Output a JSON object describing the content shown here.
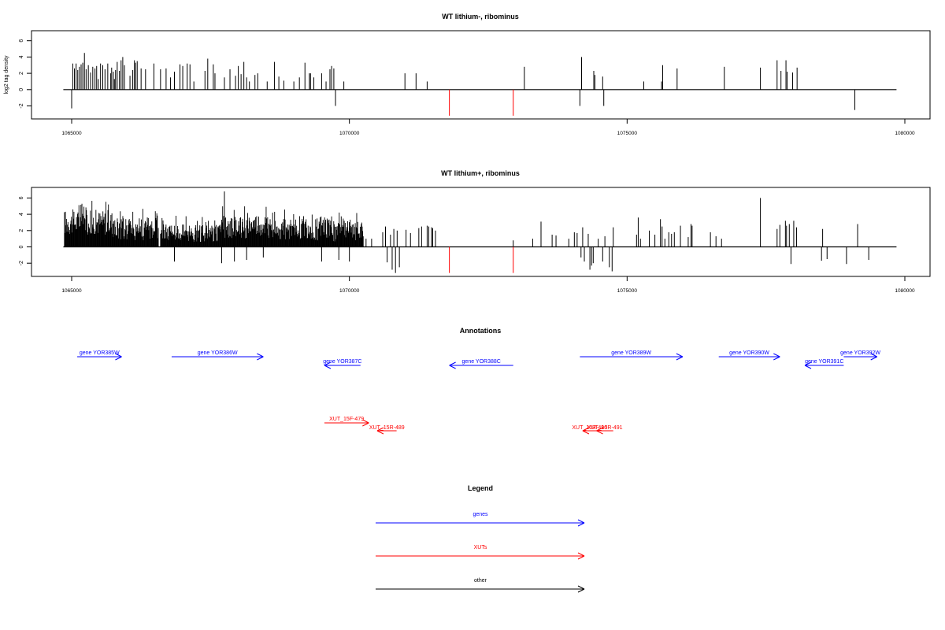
{
  "chart_data": [
    {
      "type": "bar",
      "title": "WT lithium-, ribominus",
      "xlabel": "",
      "ylabel": "log2 tag density",
      "xlim": [
        1064850,
        1079850
      ],
      "ylim": [
        -3.6,
        7.2
      ],
      "x_ticks": [
        "1065000",
        "1070000",
        "1075000",
        "1080000"
      ],
      "x_tick_values": [
        1065000,
        1070000,
        1075000,
        1080000
      ],
      "y_ticks": [
        "-2",
        "0",
        "2",
        "4",
        "6"
      ],
      "y_tick_values": [
        -2,
        0,
        2,
        4,
        6
      ],
      "baseline": {
        "from": 1064850,
        "to": 1079850
      },
      "colors": {
        "signal": "#000000",
        "highlight": "#ff0000"
      },
      "bars": [
        [
          1065000,
          -2.3
        ],
        [
          1065020,
          3.2
        ],
        [
          1065050,
          2.6
        ],
        [
          1065080,
          3.2
        ],
        [
          1065110,
          2.4
        ],
        [
          1065140,
          2.8
        ],
        [
          1065170,
          3.1
        ],
        [
          1065200,
          3.3
        ],
        [
          1065230,
          4.5
        ],
        [
          1065260,
          2.5
        ],
        [
          1065300,
          3.0
        ],
        [
          1065340,
          2.1
        ],
        [
          1065380,
          2.8
        ],
        [
          1065420,
          2.6
        ],
        [
          1065450,
          2.9
        ],
        [
          1065480,
          1.3
        ],
        [
          1065520,
          3.2
        ],
        [
          1065560,
          3.0
        ],
        [
          1065600,
          2.5
        ],
        [
          1065650,
          3.2
        ],
        [
          1065700,
          2.0
        ],
        [
          1065720,
          2.7
        ],
        [
          1065750,
          2.2
        ],
        [
          1065770,
          1.3
        ],
        [
          1065790,
          2.4
        ],
        [
          1065820,
          3.4
        ],
        [
          1065860,
          2.3
        ],
        [
          1065890,
          3.6
        ],
        [
          1065920,
          4.0
        ],
        [
          1065950,
          3.0
        ],
        [
          1066050,
          1.7
        ],
        [
          1066100,
          2.4
        ],
        [
          1066130,
          3.6
        ],
        [
          1066150,
          3.3
        ],
        [
          1066180,
          3.5
        ],
        [
          1066250,
          2.6
        ],
        [
          1066330,
          2.5
        ],
        [
          1066480,
          3.2
        ],
        [
          1066600,
          2.5
        ],
        [
          1066700,
          2.6
        ],
        [
          1066780,
          1.5
        ],
        [
          1066850,
          2.2
        ],
        [
          1066950,
          3.1
        ],
        [
          1067000,
          2.9
        ],
        [
          1067080,
          3.2
        ],
        [
          1067130,
          3.1
        ],
        [
          1067200,
          1.0
        ],
        [
          1067400,
          2.3
        ],
        [
          1067450,
          3.8
        ],
        [
          1067550,
          3.1
        ],
        [
          1067580,
          2.0
        ],
        [
          1067750,
          1.5
        ],
        [
          1067850,
          2.5
        ],
        [
          1067950,
          1.7
        ],
        [
          1068000,
          2.9
        ],
        [
          1068050,
          1.9
        ],
        [
          1068100,
          3.4
        ],
        [
          1068150,
          1.5
        ],
        [
          1068200,
          1.0
        ],
        [
          1068300,
          1.8
        ],
        [
          1068350,
          2.0
        ],
        [
          1068520,
          1.0
        ],
        [
          1068650,
          3.4
        ],
        [
          1068730,
          1.6
        ],
        [
          1068820,
          1.1
        ],
        [
          1069000,
          1.0
        ],
        [
          1069100,
          1.5
        ],
        [
          1069200,
          3.3
        ],
        [
          1069280,
          2.0
        ],
        [
          1069300,
          2.0
        ],
        [
          1069360,
          1.5
        ],
        [
          1069500,
          2.0
        ],
        [
          1069580,
          1.0
        ],
        [
          1069650,
          2.5
        ],
        [
          1069680,
          2.9
        ],
        [
          1069720,
          2.6
        ],
        [
          1069750,
          -2.0
        ],
        [
          1069900,
          1.0
        ],
        [
          1071000,
          2.0
        ],
        [
          1071200,
          2.0
        ],
        [
          1071400,
          1.0
        ],
        [
          1071800,
          -3.2,
          "highlight"
        ],
        [
          1072950,
          -3.2,
          "highlight"
        ],
        [
          1073150,
          2.8
        ],
        [
          1074150,
          -2.0
        ],
        [
          1074180,
          4.0
        ],
        [
          1074400,
          2.3
        ],
        [
          1074420,
          1.8
        ],
        [
          1074560,
          1.6
        ],
        [
          1074580,
          -2.0
        ],
        [
          1075300,
          1.0
        ],
        [
          1075620,
          1.0
        ],
        [
          1075640,
          3.0
        ],
        [
          1075900,
          2.6
        ],
        [
          1076750,
          2.8
        ],
        [
          1077400,
          2.7
        ],
        [
          1077700,
          3.6
        ],
        [
          1077770,
          2.3
        ],
        [
          1077860,
          3.6
        ],
        [
          1077880,
          2.2
        ],
        [
          1077980,
          2.1
        ],
        [
          1078060,
          2.7
        ],
        [
          1079100,
          -2.5
        ]
      ]
    },
    {
      "type": "bar",
      "title": "WT lithium+, ribominus",
      "xlabel": "",
      "ylabel": "",
      "xlim": [
        1064850,
        1079850
      ],
      "ylim": [
        -3.6,
        7.2
      ],
      "x_ticks": [
        "1065000",
        "1070000",
        "1075000",
        "1080000"
      ],
      "x_tick_values": [
        1065000,
        1070000,
        1075000,
        1080000
      ],
      "y_ticks": [
        "-2",
        "0",
        "2",
        "4",
        "6"
      ],
      "y_tick_values": [
        -2,
        0,
        2,
        4,
        6
      ],
      "baseline": {
        "from": 1064850,
        "to": 1079850
      },
      "colors": {
        "signal": "#000000",
        "highlight": "#ff0000"
      },
      "dense_regions": [
        {
          "from": 1064870,
          "to": 1065750,
          "min": 1.5,
          "max": 4.6,
          "peak": 6.0
        },
        {
          "from": 1065750,
          "to": 1066560,
          "min": 0.8,
          "max": 4.0,
          "peak": 5.0
        },
        {
          "from": 1066600,
          "to": 1067100,
          "min": 0.8,
          "max": 3.0,
          "peak": 4.0
        },
        {
          "from": 1067100,
          "to": 1067700,
          "min": 0.6,
          "max": 2.8,
          "peak": 3.8
        },
        {
          "from": 1067700,
          "to": 1068600,
          "min": 1.0,
          "max": 3.8,
          "peak": 5.0
        },
        {
          "from": 1068600,
          "to": 1069700,
          "min": 0.8,
          "max": 3.8,
          "peak": 4.8
        },
        {
          "from": 1069700,
          "to": 1070250,
          "min": 0.6,
          "max": 3.4,
          "peak": 4.3
        }
      ],
      "bars": [
        [
          1067750,
          6.8
        ],
        [
          1066850,
          -1.8
        ],
        [
          1067700,
          -2.0
        ],
        [
          1067930,
          -1.8
        ],
        [
          1068150,
          -1.6
        ],
        [
          1068450,
          -1.3
        ],
        [
          1069500,
          -1.8
        ],
        [
          1069810,
          -1.6
        ],
        [
          1070000,
          -1.8
        ],
        [
          1070300,
          1.0
        ],
        [
          1070400,
          1.0
        ],
        [
          1070600,
          1.8
        ],
        [
          1070650,
          2.5
        ],
        [
          1070680,
          -1.9
        ],
        [
          1070740,
          1.5
        ],
        [
          1070770,
          -2.8
        ],
        [
          1070800,
          2.2
        ],
        [
          1070830,
          -3.2
        ],
        [
          1070860,
          2.0
        ],
        [
          1070900,
          -2.5
        ],
        [
          1071020,
          2.1
        ],
        [
          1071100,
          1.7
        ],
        [
          1071250,
          2.3
        ],
        [
          1071300,
          2.5
        ],
        [
          1071400,
          2.6
        ],
        [
          1071430,
          2.5
        ],
        [
          1071480,
          2.4
        ],
        [
          1071500,
          2.3
        ],
        [
          1071550,
          2.0
        ],
        [
          1071800,
          -3.2,
          "highlight"
        ],
        [
          1072950,
          0.8
        ],
        [
          1072950,
          -3.2,
          "highlight"
        ],
        [
          1073300,
          1.0
        ],
        [
          1073450,
          3.1
        ],
        [
          1073650,
          1.5
        ],
        [
          1073720,
          1.4
        ],
        [
          1073950,
          1.0
        ],
        [
          1074050,
          1.8
        ],
        [
          1074100,
          1.7
        ],
        [
          1074170,
          -1.3
        ],
        [
          1074200,
          2.4
        ],
        [
          1074230,
          -1.8
        ],
        [
          1074300,
          1.6
        ],
        [
          1074330,
          -2.8
        ],
        [
          1074360,
          -2.3
        ],
        [
          1074390,
          -2.0
        ],
        [
          1074480,
          1.0
        ],
        [
          1074560,
          -1.8
        ],
        [
          1074600,
          1.3
        ],
        [
          1074680,
          -2.5
        ],
        [
          1074730,
          -3.0
        ],
        [
          1074750,
          2.4
        ],
        [
          1075170,
          1.5
        ],
        [
          1075200,
          3.6
        ],
        [
          1075240,
          1.0
        ],
        [
          1075400,
          2.0
        ],
        [
          1075500,
          1.5
        ],
        [
          1075600,
          3.4
        ],
        [
          1075630,
          2.5
        ],
        [
          1075680,
          1.0
        ],
        [
          1075750,
          1.8
        ],
        [
          1075800,
          1.6
        ],
        [
          1075850,
          1.8
        ],
        [
          1075960,
          2.6
        ],
        [
          1076100,
          1.2
        ],
        [
          1076150,
          2.8
        ],
        [
          1076170,
          2.6
        ],
        [
          1076500,
          1.8
        ],
        [
          1076600,
          1.3
        ],
        [
          1076700,
          1.0
        ],
        [
          1077400,
          6.0
        ],
        [
          1077700,
          2.2
        ],
        [
          1077750,
          2.7
        ],
        [
          1077850,
          3.2
        ],
        [
          1077870,
          2.6
        ],
        [
          1077920,
          2.8
        ],
        [
          1077950,
          -2.1
        ],
        [
          1078000,
          3.2
        ],
        [
          1078050,
          2.4
        ],
        [
          1078500,
          -1.7
        ],
        [
          1078520,
          2.2
        ],
        [
          1078600,
          -1.5
        ],
        [
          1078950,
          -2.1
        ],
        [
          1079150,
          2.8
        ],
        [
          1079350,
          -1.6
        ]
      ]
    },
    {
      "type": "annotation-track",
      "title": "Annotations",
      "xlim": [
        1064850,
        1079850
      ],
      "features": [
        {
          "label": "gene YOR385W",
          "start": 1065100,
          "end": 1065900,
          "direction": "+",
          "kind": "gene"
        },
        {
          "label": "gene YOR386W",
          "start": 1066800,
          "end": 1068450,
          "direction": "+",
          "kind": "gene"
        },
        {
          "label": "gene YOR387C",
          "start": 1069550,
          "end": 1070200,
          "direction": "-",
          "kind": "gene"
        },
        {
          "label": "gene YOR388C",
          "start": 1071800,
          "end": 1072950,
          "direction": "-",
          "kind": "gene"
        },
        {
          "label": "gene YOR389W",
          "start": 1074150,
          "end": 1076000,
          "direction": "+",
          "kind": "gene"
        },
        {
          "label": "gene YOR390W",
          "start": 1076650,
          "end": 1077750,
          "direction": "+",
          "kind": "gene"
        },
        {
          "label": "gene YOR391C",
          "start": 1078200,
          "end": 1078900,
          "direction": "-",
          "kind": "gene"
        },
        {
          "label": "gene YOR392W",
          "start": 1078900,
          "end": 1079500,
          "direction": "+",
          "kind": "gene"
        },
        {
          "label": "XUT_15F-479",
          "start": 1069550,
          "end": 1070350,
          "direction": "+",
          "kind": "xut"
        },
        {
          "label": "XUT_15R-489",
          "start": 1070500,
          "end": 1070850,
          "direction": "-",
          "kind": "xut"
        },
        {
          "label": "XUT_15R-490",
          "start": 1074200,
          "end": 1074450,
          "direction": "-",
          "kind": "xut"
        },
        {
          "label": "XUT_15R-491",
          "start": 1074450,
          "end": 1074750,
          "direction": "-",
          "kind": "xut"
        }
      ]
    },
    {
      "type": "legend",
      "title": "Legend",
      "entries": [
        {
          "label": "genes",
          "kind": "gene"
        },
        {
          "label": "XUTs",
          "kind": "xut"
        },
        {
          "label": "other",
          "kind": "other"
        }
      ]
    }
  ],
  "colors": {
    "gene": "#0000ff",
    "xut": "#ff0000",
    "other": "#000000",
    "axis": "#000000"
  }
}
